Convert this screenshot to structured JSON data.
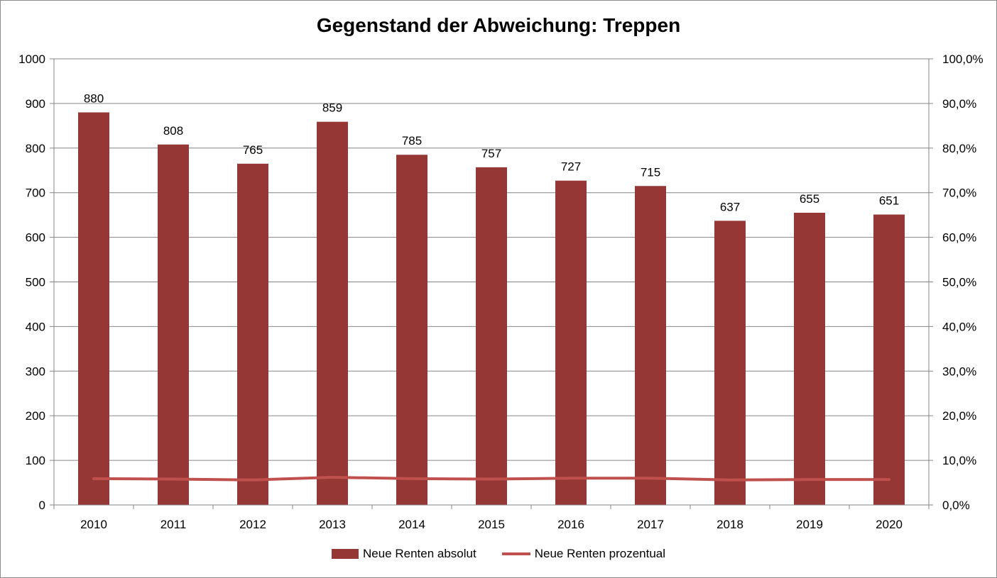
{
  "chart_data": {
    "type": "bar",
    "title": "Gegenstand der Abweichung: Treppen",
    "categories": [
      "2010",
      "2011",
      "2012",
      "2013",
      "2014",
      "2015",
      "2016",
      "2017",
      "2018",
      "2019",
      "2020"
    ],
    "series": [
      {
        "name": "Neue Renten absolut",
        "type": "bar",
        "axis": "left",
        "color": "#953735",
        "values": [
          880,
          808,
          765,
          859,
          785,
          757,
          727,
          715,
          637,
          655,
          651
        ],
        "data_labels": [
          "880",
          "808",
          "765",
          "859",
          "785",
          "757",
          "727",
          "715",
          "637",
          "655",
          "651"
        ]
      },
      {
        "name": "Neue Renten prozentual",
        "type": "line",
        "axis": "right",
        "color": "#C0504D",
        "values": [
          5.9,
          5.8,
          5.6,
          6.2,
          5.9,
          5.8,
          6.0,
          6.0,
          5.6,
          5.7,
          5.7
        ]
      }
    ],
    "y_left": {
      "ylim": [
        0,
        1000
      ],
      "ticks": [
        0,
        100,
        200,
        300,
        400,
        500,
        600,
        700,
        800,
        900,
        1000
      ],
      "tick_labels": [
        "0",
        "100",
        "200",
        "300",
        "400",
        "500",
        "600",
        "700",
        "800",
        "900",
        "1000"
      ]
    },
    "y_right": {
      "ylim": [
        0,
        100
      ],
      "ticks": [
        0,
        10,
        20,
        30,
        40,
        50,
        60,
        70,
        80,
        90,
        100
      ],
      "tick_labels": [
        "0,0%",
        "10,0%",
        "20,0%",
        "30,0%",
        "40,0%",
        "50,0%",
        "60,0%",
        "70,0%",
        "80,0%",
        "90,0%",
        "100,0%"
      ]
    },
    "grid": true,
    "legend_position": "bottom"
  },
  "legend": {
    "bar_label": "Neue Renten absolut",
    "line_label": "Neue Renten prozentual"
  }
}
